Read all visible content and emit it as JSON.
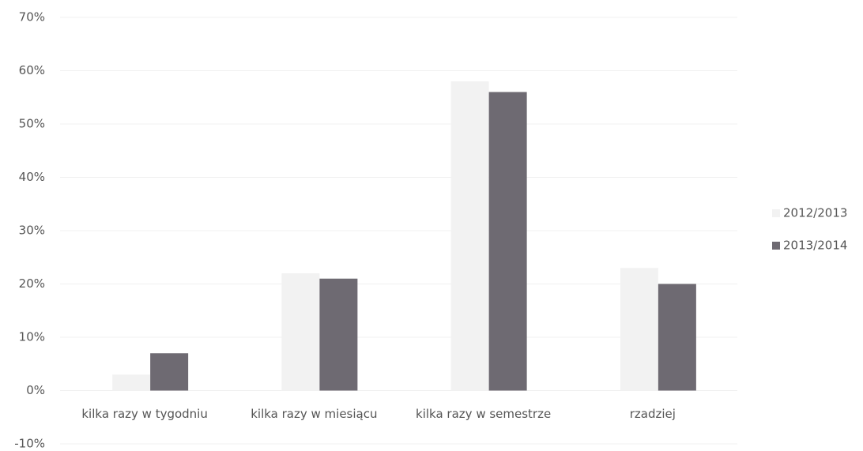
{
  "chart_data": {
    "type": "bar",
    "categories": [
      "kilka razy w tygodniu",
      "kilka razy w miesiącu",
      "kilka razy w semestrze",
      "rzadziej"
    ],
    "series": [
      {
        "name": "2012/2013",
        "color": "#f2f2f2",
        "values": [
          3,
          22,
          58,
          23
        ]
      },
      {
        "name": "2013/2014",
        "color": "#6e6a72",
        "values": [
          7,
          21,
          56,
          20
        ]
      }
    ],
    "ylim": [
      -10,
      70
    ],
    "yticks": [
      {
        "value": -10,
        "label": "-10%"
      },
      {
        "value": 0,
        "label": "0%"
      },
      {
        "value": 10,
        "label": "10%"
      },
      {
        "value": 20,
        "label": "20%"
      },
      {
        "value": 30,
        "label": "30%"
      },
      {
        "value": 40,
        "label": "40%"
      },
      {
        "value": 50,
        "label": "50%"
      },
      {
        "value": 60,
        "label": "60%"
      },
      {
        "value": 70,
        "label": "70%"
      }
    ],
    "grid": true,
    "legend": "right"
  }
}
